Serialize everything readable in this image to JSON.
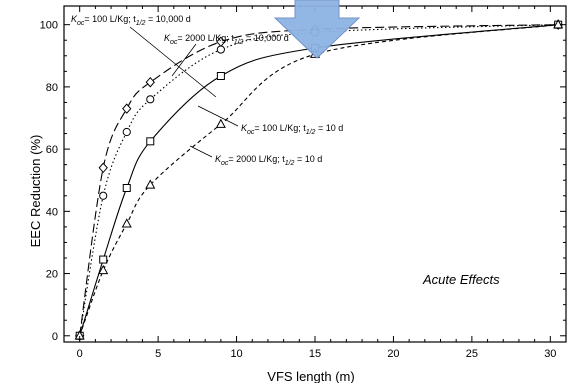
{
  "chart_data": {
    "type": "line",
    "title": "",
    "xlabel": "VFS length (m)",
    "ylabel": "EEC Reduction (%)",
    "xlim": [
      -1,
      31
    ],
    "ylim": [
      -2,
      106
    ],
    "xticks": [
      0,
      5,
      10,
      15,
      20,
      25,
      30
    ],
    "yticks": [
      0,
      20,
      40,
      60,
      80,
      100
    ],
    "grid": false,
    "legend": "none",
    "series": [
      {
        "marker": "diamond",
        "dash": "long-dash",
        "x": [
          0,
          1.5,
          3,
          4.5,
          9,
          15,
          30.5
        ],
        "y": [
          0,
          54,
          73,
          81.5,
          94.5,
          98.5,
          100
        ]
      },
      {
        "marker": "circle",
        "dash": "dotted",
        "x": [
          0,
          1.5,
          3,
          4.5,
          9,
          15,
          30.5
        ],
        "y": [
          0,
          45,
          65.5,
          76,
          92,
          97.5,
          100
        ]
      },
      {
        "marker": "square",
        "dash": "solid",
        "x": [
          0,
          1.5,
          3,
          4.5,
          9,
          15,
          30.5
        ],
        "y": [
          0,
          24.5,
          47.5,
          62.5,
          83.5,
          92.5,
          100
        ]
      },
      {
        "marker": "triangle",
        "dash": "short-dash",
        "x": [
          0,
          1.5,
          3,
          4.5,
          9,
          15,
          30.5
        ],
        "y": [
          0,
          21,
          36,
          48.5,
          68,
          90.5,
          100
        ]
      }
    ],
    "annotations": [
      {
        "pre": "K",
        "sub1": "oc",
        "mid": "= 100 L/Kg; t",
        "sub2": "1/2",
        "post": " = 10,000 d",
        "series": 0
      },
      {
        "pre": "K",
        "sub1": "oc",
        "mid": "= 2000 L/Kg; t",
        "sub2": "1/2",
        "post": " = 10,000 d",
        "series": 1
      },
      {
        "pre": "K",
        "sub1": "oc",
        "mid": "= 100 L/Kg; t",
        "sub2": "1/2",
        "post": " = 10 d",
        "series": 2
      },
      {
        "pre": "K",
        "sub1": "oc",
        "mid": "= 2000 L/Kg; t",
        "sub2": "1/2",
        "post": " = 10 d",
        "series": 3
      }
    ],
    "note": "Acute Effects",
    "overlay_arrow": {
      "color": "#8eb4e3",
      "stroke": "#6d8fc7",
      "points_to_x": 15
    }
  }
}
